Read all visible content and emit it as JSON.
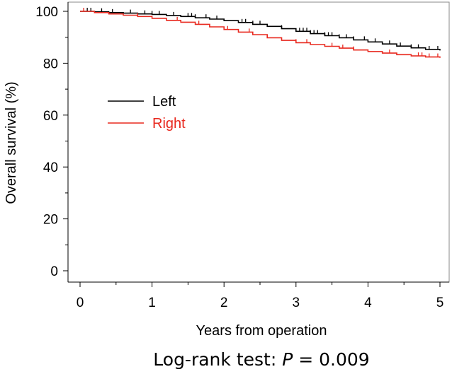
{
  "chart_data": {
    "type": "line",
    "chart_style": "kaplan-meier step curves with censor ticks",
    "xlabel": "Years from operation",
    "ylabel": "Overall survival (%)",
    "xlim": [
      0,
      5
    ],
    "ylim": [
      0,
      100
    ],
    "x_ticks": [
      "0",
      "1",
      "2",
      "3",
      "4",
      "5"
    ],
    "y_ticks": [
      "0",
      "20",
      "40",
      "60",
      "80",
      "100"
    ],
    "grid": false,
    "legend_position": "upper-left",
    "footnote": {
      "prefix": "Log-rank test: ",
      "p_symbol": "P",
      "suffix": " = 0.009"
    },
    "series": [
      {
        "name": "Left",
        "color": "#000000",
        "x": [
          0,
          0.2,
          0.4,
          0.6,
          0.8,
          1.0,
          1.2,
          1.4,
          1.6,
          1.8,
          2.0,
          2.2,
          2.4,
          2.6,
          2.8,
          3.0,
          3.2,
          3.4,
          3.6,
          3.8,
          4.0,
          4.2,
          4.4,
          4.6,
          4.8,
          5.0
        ],
        "y": [
          100,
          99.8,
          99.5,
          99.3,
          99.0,
          98.8,
          98.4,
          98.0,
          97.5,
          97.0,
          96.4,
          95.7,
          95.0,
          94.2,
          93.3,
          92.3,
          91.4,
          90.6,
          89.8,
          89.0,
          88.2,
          87.4,
          86.6,
          85.9,
          85.3,
          84.9
        ],
        "censor_x": [
          0.1,
          0.15,
          0.3,
          0.45,
          0.7,
          0.9,
          1.0,
          1.1,
          1.3,
          1.5,
          1.55,
          1.6,
          1.75,
          1.9,
          2.25,
          2.3,
          2.4,
          2.5,
          2.8,
          3.05,
          3.1,
          3.15,
          3.2,
          3.25,
          3.3,
          3.4,
          3.45,
          3.5,
          3.6,
          3.7,
          3.8,
          3.95,
          4.1,
          4.3,
          4.45,
          4.6,
          4.7,
          4.85,
          4.97
        ]
      },
      {
        "name": "Right",
        "color": "#e8281e",
        "x": [
          0,
          0.2,
          0.4,
          0.6,
          0.8,
          1.0,
          1.2,
          1.4,
          1.6,
          1.8,
          2.0,
          2.2,
          2.4,
          2.6,
          2.8,
          3.0,
          3.2,
          3.4,
          3.6,
          3.8,
          4.0,
          4.2,
          4.4,
          4.6,
          4.8,
          5.0
        ],
        "y": [
          100,
          99.5,
          99.0,
          98.5,
          98.0,
          97.3,
          96.5,
          95.8,
          95.0,
          94.0,
          93.0,
          92.0,
          91.0,
          89.8,
          88.8,
          87.9,
          87.2,
          86.5,
          85.8,
          85.1,
          84.5,
          83.9,
          83.3,
          82.8,
          82.4,
          82.1
        ],
        "censor_x": [
          0.05,
          0.8,
          1.35,
          1.65,
          2.05,
          2.35,
          3.0,
          3.15,
          3.5,
          3.65,
          3.8,
          4.3,
          4.7,
          4.75,
          4.85,
          4.97
        ]
      }
    ]
  }
}
